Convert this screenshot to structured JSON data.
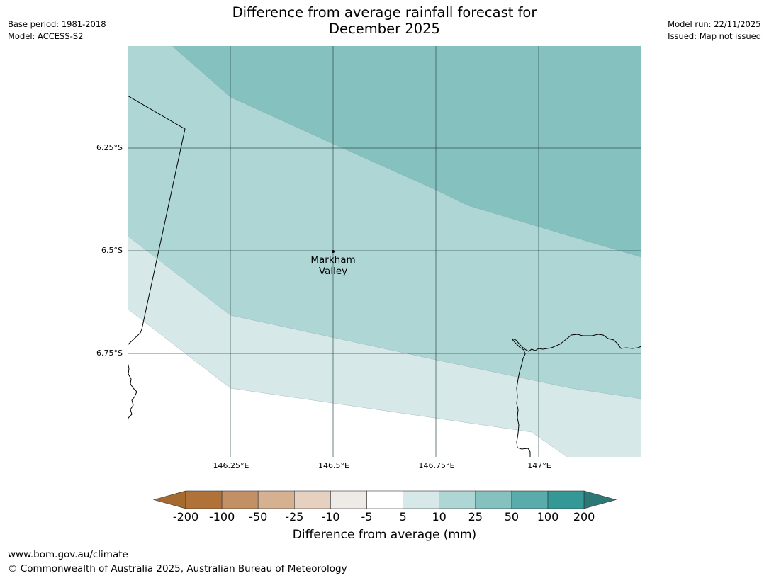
{
  "title_line1": "Difference from average rainfall forecast for",
  "title_line2": "December 2025",
  "meta_left": {
    "base_period": "Base period: 1981-2018",
    "model": "Model: ACCESS-S2"
  },
  "meta_right": {
    "model_run": "Model run: 22/11/2025",
    "issued": "Issued: Map not issued"
  },
  "map": {
    "lat_ticks": [
      "6.25°S",
      "6.5°S",
      "6.75°S"
    ],
    "lon_ticks": [
      "146.25°E",
      "146.5°E",
      "146.75°E",
      "147°E"
    ],
    "place": {
      "line1": "Markham",
      "line2": "Valley"
    }
  },
  "colorbar": {
    "title": "Difference from average (mm)",
    "labels": [
      "-200",
      "-100",
      "-50",
      "-25",
      "-10",
      "-5",
      "5",
      "10",
      "25",
      "50",
      "100",
      "200"
    ],
    "colors": [
      "#a6692e",
      "#b07239",
      "#c39065",
      "#d5b091",
      "#e6d0bf",
      "#eeeae6",
      "#ffffff",
      "#d6e9e8",
      "#aed6d5",
      "#85c1bf",
      "#5aacab",
      "#339896",
      "#2b7876"
    ]
  },
  "footer": {
    "url": "www.bom.gov.au/climate",
    "copyright": "© Commonwealth of Australia 2025, Australian Bureau of Meteorology"
  }
}
